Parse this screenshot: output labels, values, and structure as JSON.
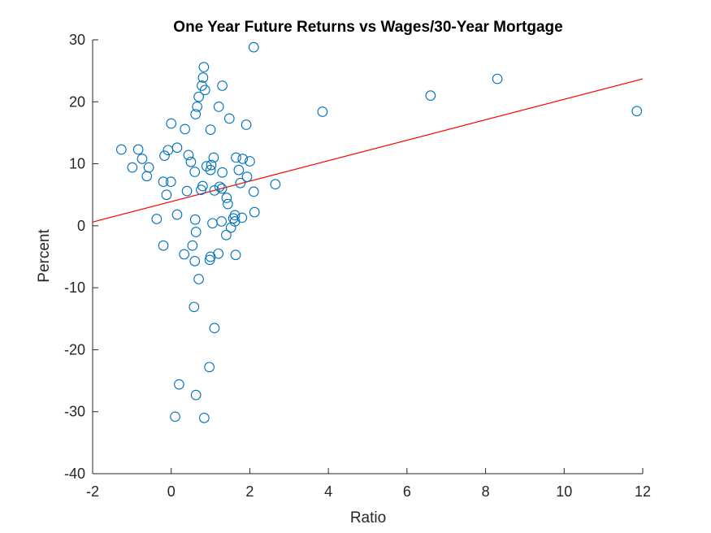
{
  "chart_data": {
    "type": "scatter",
    "title": "One Year Future Returns vs Wages/30-Year Mortgage",
    "xlabel": "Ratio",
    "ylabel": "Percent",
    "xlim": [
      -2,
      12
    ],
    "ylim": [
      -40,
      30
    ],
    "xticks": [
      -2,
      0,
      2,
      4,
      6,
      8,
      10,
      12
    ],
    "yticks": [
      -40,
      -30,
      -20,
      -10,
      0,
      10,
      20,
      30
    ],
    "marker_color": "#0072BD",
    "fit_line_color": "#FF0000",
    "grid": false,
    "legend": "none",
    "fit_line": {
      "x": [
        -2,
        12
      ],
      "y": [
        0.6,
        23.7
      ]
    },
    "points": [
      {
        "x": -1.27,
        "y": 12.3
      },
      {
        "x": -0.99,
        "y": 9.4
      },
      {
        "x": -0.84,
        "y": 12.3
      },
      {
        "x": -0.74,
        "y": 10.8
      },
      {
        "x": -0.62,
        "y": 8.0
      },
      {
        "x": -0.57,
        "y": 9.4
      },
      {
        "x": -0.37,
        "y": 1.1
      },
      {
        "x": -0.2,
        "y": 7.1
      },
      {
        "x": -0.2,
        "y": -3.2
      },
      {
        "x": -0.17,
        "y": 11.3
      },
      {
        "x": -0.12,
        "y": 5.0
      },
      {
        "x": -0.08,
        "y": 12.2
      },
      {
        "x": -0.01,
        "y": 7.1
      },
      {
        "x": 0.0,
        "y": 16.5
      },
      {
        "x": 0.1,
        "y": -30.8
      },
      {
        "x": 0.15,
        "y": 12.6
      },
      {
        "x": 0.15,
        "y": 1.8
      },
      {
        "x": 0.2,
        "y": -25.6
      },
      {
        "x": 0.33,
        "y": -4.6
      },
      {
        "x": 0.35,
        "y": 15.6
      },
      {
        "x": 0.4,
        "y": 5.6
      },
      {
        "x": 0.44,
        "y": 11.4
      },
      {
        "x": 0.5,
        "y": 10.3
      },
      {
        "x": 0.54,
        "y": -3.2
      },
      {
        "x": 0.58,
        "y": -13.1
      },
      {
        "x": 0.6,
        "y": -5.7
      },
      {
        "x": 0.6,
        "y": 8.7
      },
      {
        "x": 0.61,
        "y": 1.0
      },
      {
        "x": 0.62,
        "y": 18.0
      },
      {
        "x": 0.63,
        "y": -27.3
      },
      {
        "x": 0.63,
        "y": -1.0
      },
      {
        "x": 0.66,
        "y": 19.2
      },
      {
        "x": 0.7,
        "y": -8.6
      },
      {
        "x": 0.7,
        "y": 20.8
      },
      {
        "x": 0.76,
        "y": 5.8
      },
      {
        "x": 0.78,
        "y": 22.6
      },
      {
        "x": 0.8,
        "y": 6.4
      },
      {
        "x": 0.81,
        "y": 23.9
      },
      {
        "x": 0.83,
        "y": 25.6
      },
      {
        "x": 0.84,
        "y": -31.0
      },
      {
        "x": 0.86,
        "y": 21.9
      },
      {
        "x": 0.9,
        "y": 9.6
      },
      {
        "x": 0.97,
        "y": -22.8
      },
      {
        "x": 0.98,
        "y": -5.5
      },
      {
        "x": 1.0,
        "y": -5.0
      },
      {
        "x": 1.0,
        "y": 9.0
      },
      {
        "x": 1.0,
        "y": 15.5
      },
      {
        "x": 1.02,
        "y": 9.8
      },
      {
        "x": 1.05,
        "y": 0.4
      },
      {
        "x": 1.08,
        "y": 11.0
      },
      {
        "x": 1.1,
        "y": -16.5
      },
      {
        "x": 1.1,
        "y": 5.7
      },
      {
        "x": 1.2,
        "y": -4.5
      },
      {
        "x": 1.21,
        "y": 19.2
      },
      {
        "x": 1.23,
        "y": 6.3
      },
      {
        "x": 1.28,
        "y": 0.7
      },
      {
        "x": 1.29,
        "y": 6.0
      },
      {
        "x": 1.3,
        "y": 22.6
      },
      {
        "x": 1.3,
        "y": 8.6
      },
      {
        "x": 1.4,
        "y": -1.5
      },
      {
        "x": 1.41,
        "y": 4.5
      },
      {
        "x": 1.44,
        "y": 3.5
      },
      {
        "x": 1.48,
        "y": 17.3
      },
      {
        "x": 1.52,
        "y": -0.3
      },
      {
        "x": 1.58,
        "y": 1.2
      },
      {
        "x": 1.62,
        "y": 0.7
      },
      {
        "x": 1.62,
        "y": 1.7
      },
      {
        "x": 1.64,
        "y": -4.7
      },
      {
        "x": 1.65,
        "y": 11.0
      },
      {
        "x": 1.72,
        "y": 9.0
      },
      {
        "x": 1.76,
        "y": 6.9
      },
      {
        "x": 1.8,
        "y": 1.3
      },
      {
        "x": 1.82,
        "y": 10.8
      },
      {
        "x": 1.91,
        "y": 16.3
      },
      {
        "x": 1.93,
        "y": 7.9
      },
      {
        "x": 2.0,
        "y": 10.4
      },
      {
        "x": 2.1,
        "y": 28.8
      },
      {
        "x": 2.1,
        "y": 5.5
      },
      {
        "x": 2.12,
        "y": 2.2
      },
      {
        "x": 2.65,
        "y": 6.7
      },
      {
        "x": 3.85,
        "y": 18.4
      },
      {
        "x": 6.6,
        "y": 21.0
      },
      {
        "x": 8.3,
        "y": 23.7
      },
      {
        "x": 11.85,
        "y": 18.5
      }
    ]
  }
}
